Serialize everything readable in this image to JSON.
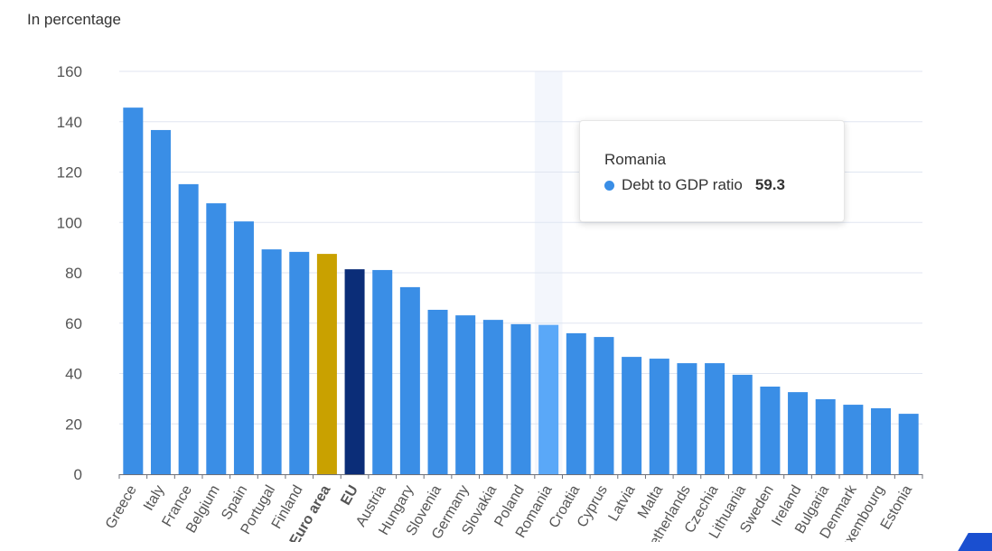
{
  "chart_data": {
    "type": "bar",
    "ylabel": "In percentage",
    "ylim": [
      0,
      160
    ],
    "yticks": [
      0,
      20,
      40,
      60,
      80,
      100,
      120,
      140,
      160
    ],
    "grid": true,
    "categories": [
      "Greece",
      "Italy",
      "France",
      "Belgium",
      "Spain",
      "Portugal",
      "Finland",
      "Euro area",
      "EU",
      "Austria",
      "Hungary",
      "Slovenia",
      "Germany",
      "Slovakia",
      "Poland",
      "Romania",
      "Croatia",
      "Cyprus",
      "Latvia",
      "Malta",
      "Netherlands",
      "Czechia",
      "Lithuania",
      "Sweden",
      "Ireland",
      "Bulgaria",
      "Denmark",
      "Luxembourg",
      "Estonia"
    ],
    "series": [
      {
        "name": "Debt to GDP ratio",
        "values": [
          145.6,
          136.7,
          115.2,
          107.6,
          100.4,
          89.3,
          88.3,
          87.5,
          81.4,
          81.1,
          74.3,
          65.3,
          63.1,
          61.3,
          59.6,
          59.3,
          56.0,
          54.5,
          46.6,
          45.9,
          44.1,
          44.1,
          39.5,
          34.8,
          32.6,
          29.8,
          27.6,
          26.2,
          24.0
        ]
      }
    ],
    "bold_categories": [
      "Euro area",
      "EU"
    ],
    "colors": {
      "default": "#3a8ee6",
      "euro_area": "#c9a100",
      "eu": "#0b2d78",
      "hovered": "#5aa8f8"
    },
    "hovered": "Romania"
  },
  "tooltip": {
    "title": "Romania",
    "series": "Debt to GDP ratio",
    "value": "59.3",
    "dot_color": "#3a8ee6"
  }
}
